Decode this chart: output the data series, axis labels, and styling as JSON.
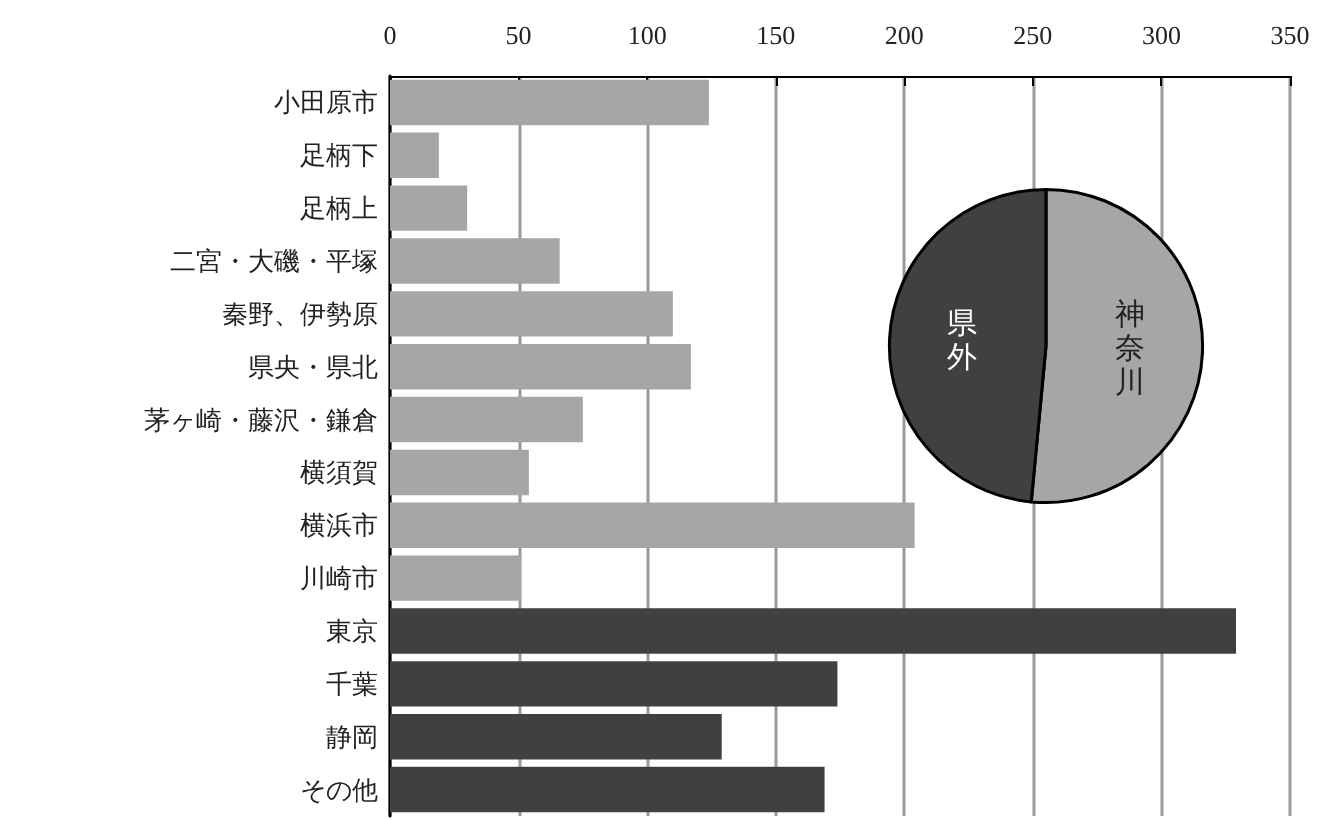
{
  "chart_data": [
    {
      "type": "bar",
      "orientation": "horizontal",
      "categories": [
        "小田原市",
        "足柄下",
        "足柄上",
        "二宮・大磯・平塚",
        "秦野、伊勢原",
        "県央・県北",
        "茅ヶ崎・藤沢・鎌倉",
        "横須賀",
        "横浜市",
        "川崎市",
        "東京",
        "千葉",
        "静岡",
        "その他"
      ],
      "values": [
        124,
        19,
        30,
        66,
        110,
        117,
        75,
        54,
        204,
        51,
        329,
        174,
        129,
        169
      ],
      "colors": [
        "#a6a6a6",
        "#a6a6a6",
        "#a6a6a6",
        "#a6a6a6",
        "#a6a6a6",
        "#a6a6a6",
        "#a6a6a6",
        "#a6a6a6",
        "#a6a6a6",
        "#a6a6a6",
        "#404040",
        "#404040",
        "#404040",
        "#404040"
      ],
      "xlim": [
        0,
        350
      ],
      "xticks": [
        0,
        50,
        100,
        150,
        200,
        250,
        300,
        350
      ],
      "grid": "x",
      "legend": false
    },
    {
      "type": "pie",
      "categories": [
        "神奈川",
        "県外"
      ],
      "values": [
        51.5,
        48.5
      ],
      "colors": [
        "#a6a6a6",
        "#404040"
      ],
      "legend": false
    }
  ]
}
